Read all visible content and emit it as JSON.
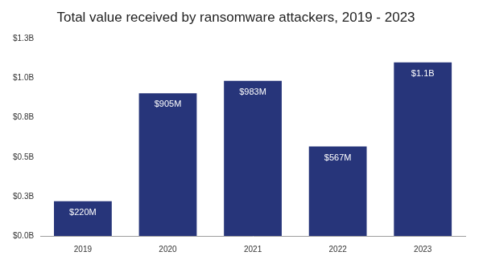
{
  "chart_data": {
    "type": "bar",
    "title": "Total value received by ransomware attackers, 2019 - 2023",
    "categories": [
      "2019",
      "2020",
      "2021",
      "2022",
      "2023"
    ],
    "values": [
      0.22,
      0.905,
      0.983,
      0.567,
      1.1
    ],
    "value_labels": [
      "$220M",
      "$905M",
      "$983M",
      "$567M",
      "$1.1B"
    ],
    "color": "#27357a",
    "ylim": [
      0,
      1.25
    ],
    "yticks": [
      {
        "value": 0,
        "label": "$0.0B"
      },
      {
        "value": 0.25,
        "label": "$0.3B"
      },
      {
        "value": 0.5,
        "label": "$0.5B"
      },
      {
        "value": 0.75,
        "label": "$0.8B"
      },
      {
        "value": 1,
        "label": "$1.0B"
      },
      {
        "value": 1.25,
        "label": "$1.3B"
      }
    ],
    "grid": false,
    "data_labels": true
  }
}
